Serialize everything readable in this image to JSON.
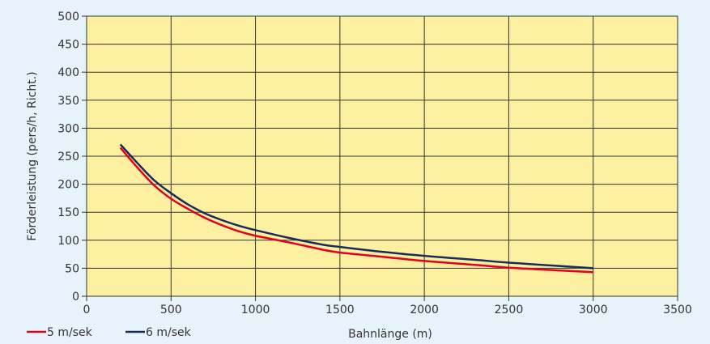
{
  "chart_data": {
    "type": "line",
    "title": "",
    "xlabel": "Bahnlänge (m)",
    "ylabel": "Förderleistung (pers/h, Richt.)",
    "xlim": [
      0,
      3500
    ],
    "ylim": [
      0,
      500
    ],
    "xticks": [
      0,
      500,
      1000,
      1500,
      2000,
      2500,
      3000,
      3500
    ],
    "yticks": [
      0,
      50,
      100,
      150,
      200,
      250,
      300,
      350,
      400,
      450,
      500
    ],
    "grid": true,
    "legend_position": "bottom-left",
    "plot_background": "#fdf0a0",
    "page_background": "#e7f3fb",
    "series": [
      {
        "name": "5 m/sek",
        "color": "#e3001b",
        "x": [
          200,
          300,
          400,
          500,
          600,
          700,
          800,
          900,
          1000,
          1200,
          1400,
          1500,
          1700,
          2000,
          2300,
          2500,
          2800,
          3000
        ],
        "y": [
          265,
          230,
          198,
          174,
          156,
          140,
          127,
          116,
          108,
          96,
          83,
          78,
          72,
          63,
          56,
          51,
          46,
          43
        ]
      },
      {
        "name": "6 m/sek",
        "color": "#1a2b5e",
        "x": [
          200,
          300,
          400,
          500,
          600,
          700,
          800,
          900,
          1000,
          1200,
          1400,
          1500,
          1700,
          2000,
          2300,
          2500,
          2800,
          3000
        ],
        "y": [
          271,
          238,
          207,
          184,
          164,
          148,
          136,
          126,
          118,
          104,
          92,
          88,
          81,
          72,
          65,
          60,
          54,
          50
        ]
      }
    ]
  }
}
